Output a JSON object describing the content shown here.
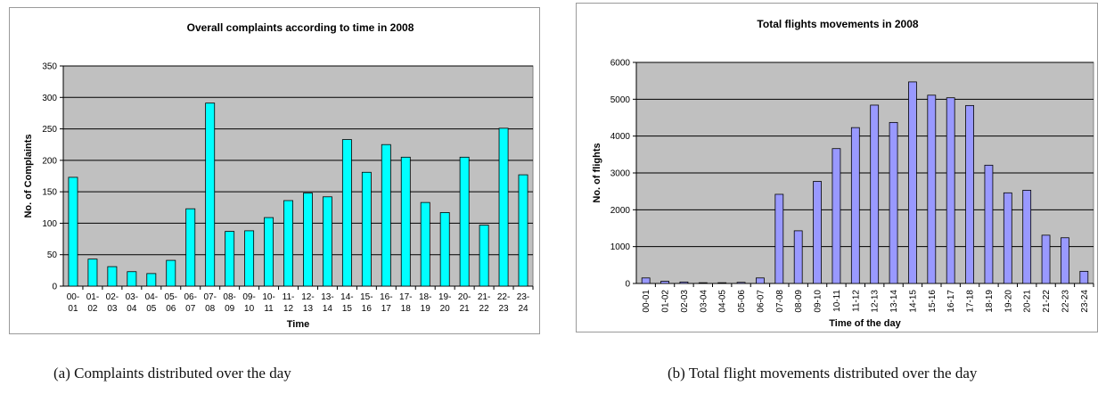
{
  "chart_data": [
    {
      "type": "bar",
      "title": "Overall complaints according to time in 2008",
      "xlabel": "Time",
      "ylabel": "No. of Complaints",
      "ylim": [
        0,
        350
      ],
      "yticks": [
        0,
        50,
        100,
        150,
        200,
        250,
        300,
        350
      ],
      "grid": true,
      "legend": "none",
      "categories": [
        [
          "00-",
          "01"
        ],
        [
          "01-",
          "02"
        ],
        [
          "02-",
          "03"
        ],
        [
          "03-",
          "04"
        ],
        [
          "04-",
          "05"
        ],
        [
          "05-",
          "06"
        ],
        [
          "06-",
          "07"
        ],
        [
          "07-",
          "08"
        ],
        [
          "08-",
          "09"
        ],
        [
          "09-",
          "10"
        ],
        [
          "10-",
          "11"
        ],
        [
          "11-",
          "12"
        ],
        [
          "12-",
          "13"
        ],
        [
          "13-",
          "14"
        ],
        [
          "14-",
          "15"
        ],
        [
          "15-",
          "16"
        ],
        [
          "16-",
          "17"
        ],
        [
          "17-",
          "18"
        ],
        [
          "18-",
          "19"
        ],
        [
          "19-",
          "20"
        ],
        [
          "20-",
          "21"
        ],
        [
          "21-",
          "22"
        ],
        [
          "22-",
          "23"
        ],
        [
          "23-",
          "24"
        ]
      ],
      "values": [
        173,
        43,
        31,
        23,
        20,
        41,
        123,
        291,
        87,
        88,
        109,
        136,
        148,
        142,
        233,
        181,
        225,
        205,
        133,
        117,
        205,
        97,
        251,
        177
      ],
      "colors": {
        "bar": "#00ffff",
        "plot_bg": "#c0c0c0"
      }
    },
    {
      "type": "bar",
      "title": "Total flights movements in 2008",
      "xlabel": "Time of the day",
      "ylabel": "No. of flights",
      "ylim": [
        0,
        6000
      ],
      "yticks": [
        0,
        1000,
        2000,
        3000,
        4000,
        5000,
        6000
      ],
      "grid": true,
      "legend": "none",
      "categories": [
        "00-01",
        "01-02",
        "02-03",
        "03-04",
        "04-05",
        "05-06",
        "06-07",
        "07-08",
        "08-09",
        "09-10",
        "10-11",
        "11-12",
        "12-13",
        "13-14",
        "14-15",
        "15-16",
        "16-17",
        "17-18",
        "18-19",
        "19-20",
        "20-21",
        "21-22",
        "22-23",
        "23-24"
      ],
      "values": [
        150,
        60,
        40,
        20,
        20,
        30,
        150,
        2420,
        1430,
        2770,
        3660,
        4230,
        4840,
        4370,
        5470,
        5110,
        5040,
        4830,
        3210,
        2460,
        2530,
        1310,
        1240,
        330
      ],
      "colors": {
        "bar": "#9999ff",
        "plot_bg": "#c0c0c0"
      }
    }
  ],
  "captions": {
    "a": "(a)  Complaints distributed over the day",
    "b": "(b)  Total flight movements distributed over the day"
  }
}
